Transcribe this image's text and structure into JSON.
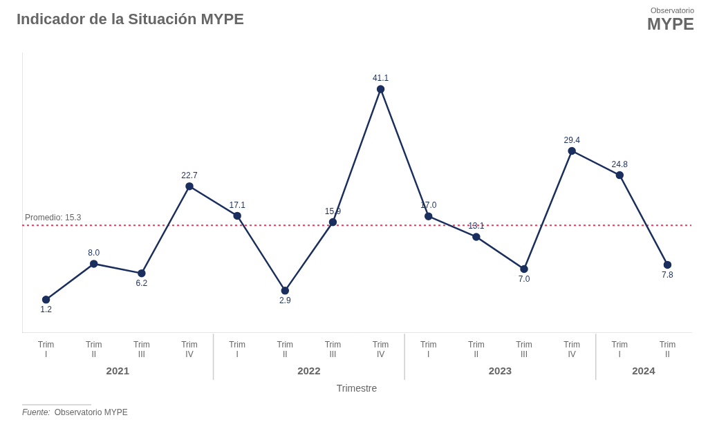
{
  "chart_data": {
    "type": "line",
    "title": "Indicador de la Situación MYPE",
    "categories": [
      "Trim\nI",
      "Trim\nII",
      "Trim\nIII",
      "Trim\nIV",
      "Trim\nI",
      "Trim\nII",
      "Trim\nIII",
      "Trim\nIV",
      "Trim\nI",
      "Trim\nII",
      "Trim\nIII",
      "Trim\nIV",
      "Trim\nI",
      "Trim\nII"
    ],
    "series": [
      {
        "name": "Indicador de la Situación MYPE",
        "color": "#1b2f5e",
        "values": [
          1.2,
          8.0,
          6.2,
          22.7,
          17.1,
          2.9,
          15.9,
          41.1,
          17.0,
          13.1,
          7.0,
          29.4,
          24.8,
          7.8
        ],
        "value_labels": [
          "1.2",
          "8.0",
          "6.2",
          "22.7",
          "17.1",
          "2.9",
          "15.9",
          "41.1",
          "17.0",
          "13.1",
          "7.0",
          "29.4",
          "24.8",
          "7.8"
        ]
      }
    ],
    "groups": [
      {
        "label": "2021",
        "count": 4
      },
      {
        "label": "2022",
        "count": 4
      },
      {
        "label": "2023",
        "count": 4
      },
      {
        "label": "2024",
        "count": 2
      }
    ],
    "reference_line": {
      "value": 15.3,
      "label": "Promedio: 15.3",
      "color": "#e8385a"
    },
    "xlabel": "Trimestre",
    "source_label": "Fuente:",
    "source": "Observatorio MYPE",
    "logo": [
      "Observatorio",
      "MYPE"
    ],
    "ylim": [
      -5,
      48
    ],
    "grid": false,
    "tick_labels": "x",
    "data_labels": true
  }
}
